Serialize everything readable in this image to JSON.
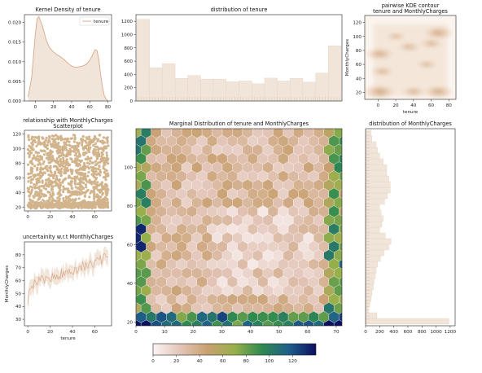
{
  "figure": {
    "background": "#ffffff",
    "palette": {
      "tan": "#d2b48c",
      "tan_fill": "#f1e5da",
      "line": "#d9a88a",
      "hex_cmap": [
        "#fbf3f3",
        "#e3c5b8",
        "#c8a070",
        "#98b04a",
        "#2f8a4f",
        "#1f5f8a",
        "#0b0f60"
      ]
    }
  },
  "chart_data": [
    {
      "id": "kde",
      "type": "line",
      "title": "Kernel Density of tenure",
      "xlabel": "",
      "ylabel": "",
      "xlim": [
        -12,
        84
      ],
      "ylim": [
        0,
        0.022
      ],
      "xticks": [
        "0",
        "20",
        "40",
        "60",
        "80"
      ],
      "yticks": [
        "0.000",
        "0.005",
        "0.010",
        "0.015",
        "0.020"
      ],
      "legend": {
        "position": "top-right",
        "entries": [
          "tenure"
        ]
      },
      "series": [
        {
          "name": "tenure",
          "x": [
            -8,
            -4,
            0,
            2,
            4,
            8,
            12,
            16,
            20,
            24,
            28,
            32,
            36,
            40,
            44,
            48,
            52,
            56,
            60,
            64,
            66,
            68,
            70,
            72,
            74,
            76,
            78,
            80
          ],
          "y": [
            0.001,
            0.006,
            0.017,
            0.021,
            0.0215,
            0.019,
            0.0155,
            0.0135,
            0.0125,
            0.0118,
            0.0112,
            0.0105,
            0.0096,
            0.0089,
            0.0086,
            0.0087,
            0.0089,
            0.0093,
            0.0104,
            0.0122,
            0.0131,
            0.0128,
            0.0105,
            0.0068,
            0.0035,
            0.0014,
            0.0005,
            0.0001
          ]
        }
      ]
    },
    {
      "id": "tenure_hist",
      "type": "bar",
      "title": "distribution of tenure",
      "xlabel": "",
      "ylabel": "",
      "ylim": [
        0,
        1300
      ],
      "yticks": [
        "0",
        "200",
        "400",
        "600",
        "800",
        "1000",
        "1200"
      ],
      "values": [
        1230,
        500,
        560,
        340,
        385,
        330,
        330,
        290,
        300,
        260,
        345,
        300,
        340,
        285,
        420,
        830
      ]
    },
    {
      "id": "kde2d",
      "type": "heatmap",
      "title": "pairwise KDE contour",
      "subtitle": "tenure and MonthlyCharges",
      "xlabel": "tenure",
      "ylabel": "MonthlyCharges",
      "xlim": [
        -15,
        88
      ],
      "ylim": [
        10,
        130
      ],
      "xticks": [
        "0",
        "20",
        "40",
        "60",
        "80"
      ],
      "yticks": [
        "20",
        "40",
        "60",
        "80",
        "100",
        "120"
      ],
      "blobs": [
        {
          "x": 2,
          "y": 21,
          "w": 0.95
        },
        {
          "x": 2,
          "y": 75,
          "w": 0.75
        },
        {
          "x": 5,
          "y": 50,
          "w": 0.45
        },
        {
          "x": 40,
          "y": 21,
          "w": 0.5
        },
        {
          "x": 68,
          "y": 21,
          "w": 0.8
        },
        {
          "x": 68,
          "y": 105,
          "w": 0.85
        },
        {
          "x": 35,
          "y": 85,
          "w": 0.45
        },
        {
          "x": 55,
          "y": 60,
          "w": 0.35
        },
        {
          "x": 20,
          "y": 100,
          "w": 0.3
        },
        {
          "x": 60,
          "y": 90,
          "w": 0.45
        }
      ]
    },
    {
      "id": "scatter",
      "type": "scatter",
      "title": "relationship with MonthlyCharges",
      "subtitle": "Scatterplot",
      "xlabel": "",
      "ylabel": "",
      "xlim": [
        -3,
        75
      ],
      "ylim": [
        15,
        125
      ],
      "xticks": [
        "0",
        "20",
        "40",
        "60"
      ],
      "yticks": [
        "20",
        "40",
        "60",
        "80",
        "100",
        "120"
      ],
      "x_range": [
        0,
        72
      ],
      "y_range": [
        18.25,
        118.75
      ],
      "n_points": 1400
    },
    {
      "id": "mean_line",
      "type": "line",
      "title": "uncertainity w.r.t MonthlyCharges",
      "xlabel": "tenure",
      "ylabel": "MonthlyCharges",
      "xlim": [
        -3,
        75
      ],
      "ylim": [
        25,
        90
      ],
      "xticks": [
        "0",
        "20",
        "40",
        "60"
      ],
      "yticks": [
        "30",
        "40",
        "50",
        "60",
        "70",
        "80"
      ],
      "series": [
        {
          "name": "mean",
          "start": 41,
          "end": 78
        }
      ]
    },
    {
      "id": "hexbin",
      "type": "heatmap",
      "title": "Marginal Distribution of tenure and MonthlyCharges",
      "xlabel": "",
      "ylabel": "",
      "xlim": [
        0,
        72
      ],
      "ylim": [
        18,
        120
      ],
      "xticks": [
        "0",
        "10",
        "20",
        "30",
        "40",
        "50",
        "60",
        "70"
      ],
      "yticks": [
        "20",
        "40",
        "60",
        "80",
        "100"
      ],
      "colorbar": {
        "ticks": [
          "0",
          "20",
          "40",
          "60",
          "80",
          "100",
          "120"
        ],
        "max": 140
      }
    },
    {
      "id": "mc_hist",
      "type": "bar",
      "orientation": "horizontal",
      "title": "distribution of MonthlyCharges",
      "xlabel": "",
      "ylabel": "",
      "xlim": [
        0,
        1270
      ],
      "ylim": [
        18,
        120
      ],
      "xticks": [
        "0",
        "200",
        "400",
        "600",
        "800",
        "1000",
        "1200"
      ],
      "values": [
        1180,
        160,
        40,
        60,
        80,
        90,
        110,
        120,
        140,
        150,
        170,
        210,
        260,
        330,
        360,
        280,
        200,
        230,
        250,
        220,
        200,
        270,
        310,
        350,
        350,
        330,
        300,
        300,
        250,
        200,
        170,
        150,
        90,
        80
      ]
    }
  ]
}
